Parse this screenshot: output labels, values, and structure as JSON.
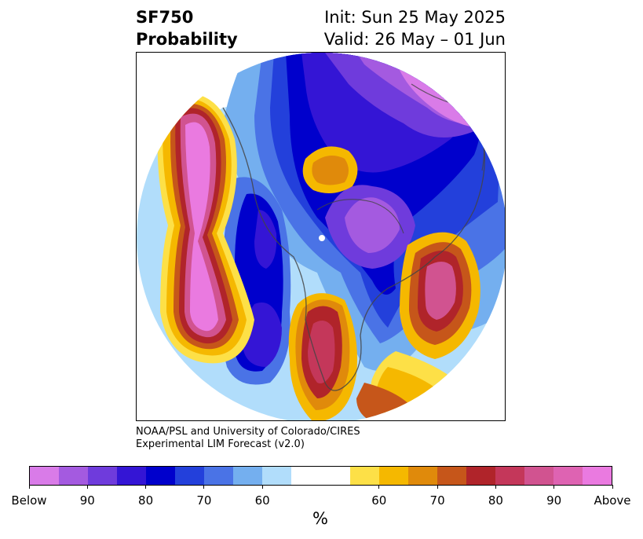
{
  "title": {
    "left_line1": "SF750",
    "left_line2": "Probability",
    "right_line1": "Init: Sun 25 May 2025",
    "right_line2": "Valid: 26 May – 01 Jun"
  },
  "credit": {
    "line1": "NOAA/PSL and University of Colorado/CIRES",
    "line2": "Experimental LIM Forecast (v2.0)"
  },
  "colorbar": {
    "colors": [
      "#d97be8",
      "#a45ae0",
      "#6f3bdc",
      "#3415d5",
      "#0000cc",
      "#2340db",
      "#4a73e6",
      "#74afef",
      "#b1ddfb",
      "#ffffff",
      "#ffffff",
      "#fde047",
      "#f5b800",
      "#e08a0b",
      "#c6561a",
      "#b0242a",
      "#c4375a",
      "#d15390",
      "#de63b2",
      "#ea7ae0"
    ],
    "tick_labels": [
      "Below",
      "90",
      "80",
      "70",
      "60",
      "60",
      "70",
      "80",
      "90",
      "Above"
    ],
    "unit_label": "%"
  },
  "map": {
    "projection": "north-polar-stereographic",
    "fields": [
      {
        "region": "Alaska / NE Pacific",
        "category": "above",
        "max_level": "Above"
      },
      {
        "region": "Arctic / N Atlantic / Europe",
        "category": "below",
        "max_level": "90"
      },
      {
        "region": "Eastern Europe / Russia",
        "category": "below",
        "max_level": "Below"
      },
      {
        "region": "Mediterranean / Near East",
        "category": "above",
        "max_level": "90"
      },
      {
        "region": "Eastern North America",
        "category": "above",
        "max_level": "80"
      },
      {
        "region": "Western North America / Rockies",
        "category": "below",
        "max_level": "90"
      },
      {
        "region": "Central Asia",
        "category": "above",
        "max_level": "70"
      }
    ]
  }
}
